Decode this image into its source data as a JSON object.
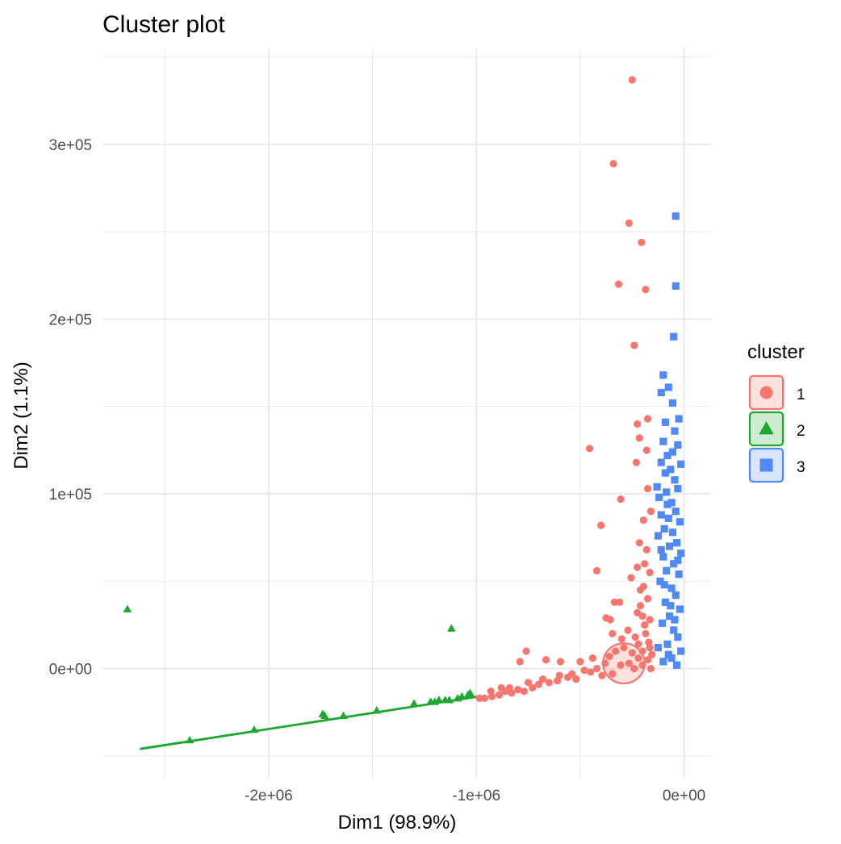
{
  "chart_data": {
    "type": "scatter",
    "title": "Cluster plot",
    "xlabel": "Dim1 (98.9%)",
    "ylabel": "Dim2 (1.1%)",
    "xlim": [
      -2800000,
      130000
    ],
    "ylim": [
      -63000,
      355000
    ],
    "x_ticks": [
      -2000000,
      -1000000,
      0
    ],
    "x_tick_labels": [
      "-2e+06",
      "-1e+06",
      "0e+00"
    ],
    "y_ticks": [
      0,
      100000,
      200000,
      300000
    ],
    "y_tick_labels": [
      "0e+00",
      "1e+05",
      "2e+05",
      "3e+05"
    ],
    "grid": true,
    "legend": {
      "title": "cluster",
      "position": "right",
      "entries": [
        {
          "label": "1",
          "shape": "circle",
          "color": "#F8766D"
        },
        {
          "label": "2",
          "shape": "triangle",
          "color": "#1CA72E"
        },
        {
          "label": "3",
          "shape": "square",
          "color": "#5089F8"
        }
      ]
    },
    "series": [
      {
        "name": "1",
        "color": "#F8766D",
        "shape": "circle",
        "points": [
          [
            -250000,
            337000
          ],
          [
            -340000,
            289000
          ],
          [
            -265000,
            255000
          ],
          [
            -205000,
            244000
          ],
          [
            -315000,
            220000
          ],
          [
            -185000,
            217000
          ],
          [
            -240000,
            185000
          ],
          [
            -455000,
            126000
          ],
          [
            -225000,
            140000
          ],
          [
            -175000,
            143000
          ],
          [
            -215000,
            132000
          ],
          [
            -180000,
            125000
          ],
          [
            -230000,
            118000
          ],
          [
            -305000,
            97000
          ],
          [
            -400000,
            82000
          ],
          [
            -175000,
            103000
          ],
          [
            -160000,
            90000
          ],
          [
            -195000,
            85000
          ],
          [
            -215000,
            72000
          ],
          [
            -180000,
            68000
          ],
          [
            -190000,
            60000
          ],
          [
            -420000,
            56000
          ],
          [
            -225000,
            58000
          ],
          [
            -165000,
            55000
          ],
          [
            -255000,
            52000
          ],
          [
            -195000,
            47000
          ],
          [
            -210000,
            36000
          ],
          [
            -310000,
            38000
          ],
          [
            -335000,
            38000
          ],
          [
            -375000,
            29000
          ],
          [
            -355000,
            28000
          ],
          [
            -225000,
            32000
          ],
          [
            -270000,
            22000
          ],
          [
            -345000,
            20000
          ],
          [
            -300000,
            17000
          ],
          [
            -235000,
            18000
          ],
          [
            -190000,
            25000
          ],
          [
            -170000,
            15000
          ],
          [
            -760000,
            10000
          ],
          [
            -790000,
            4000
          ],
          [
            -665000,
            5000
          ],
          [
            -595000,
            4000
          ],
          [
            -500000,
            4000
          ],
          [
            -440000,
            6000
          ],
          [
            -420000,
            0
          ],
          [
            -380000,
            3000
          ],
          [
            -360000,
            7000
          ],
          [
            -330000,
            10000
          ],
          [
            -290000,
            12000
          ],
          [
            -250000,
            9000
          ],
          [
            -220000,
            6000
          ],
          [
            -200000,
            10000
          ],
          [
            -175000,
            5000
          ],
          [
            -155000,
            8000
          ],
          [
            -265000,
            3000
          ],
          [
            -305000,
            2000
          ],
          [
            -345000,
            -3000
          ],
          [
            -395000,
            -4000
          ],
          [
            -450000,
            -2000
          ],
          [
            -520000,
            -6000
          ],
          [
            -560000,
            -5000
          ],
          [
            -610000,
            -7000
          ],
          [
            -650000,
            -8000
          ],
          [
            -700000,
            -9000
          ],
          [
            -730000,
            -11000
          ],
          [
            -770000,
            -13000
          ],
          [
            -800000,
            -12000
          ],
          [
            -830000,
            -14000
          ],
          [
            -860000,
            -13000
          ],
          [
            -890000,
            -15000
          ],
          [
            -925000,
            -16000
          ],
          [
            -960000,
            -17000
          ],
          [
            -985000,
            -17000
          ],
          [
            -930000,
            -13000
          ],
          [
            -880000,
            -11000
          ],
          [
            -840000,
            -11000
          ],
          [
            -750000,
            -8000
          ],
          [
            -680000,
            -6000
          ],
          [
            -600000,
            -4000
          ],
          [
            -540000,
            -3000
          ],
          [
            -480000,
            -1000
          ],
          [
            -240000,
            0
          ],
          [
            -200000,
            2000
          ],
          [
            -160000,
            0
          ],
          [
            -210000,
            45000
          ],
          [
            -175000,
            40000
          ],
          [
            -200000,
            30000
          ],
          [
            -165000,
            28000
          ],
          [
            -185000,
            20000
          ],
          [
            -220000,
            14000
          ],
          [
            -165000,
            12000
          ]
        ]
      },
      {
        "name": "2",
        "color": "#1CA72E",
        "shape": "triangle",
        "points": [
          [
            -2680000,
            34000
          ],
          [
            -1120000,
            23000
          ],
          [
            -2380000,
            -41000
          ],
          [
            -2070000,
            -35000
          ],
          [
            -1740000,
            -26000
          ],
          [
            -1730000,
            -27000
          ],
          [
            -1640000,
            -27000
          ],
          [
            -1480000,
            -24000
          ],
          [
            -1300000,
            -20000
          ],
          [
            -1220000,
            -19000
          ],
          [
            -1200000,
            -19000
          ],
          [
            -1180000,
            -18000
          ],
          [
            -1150000,
            -18000
          ],
          [
            -1130000,
            -18000
          ],
          [
            -1090000,
            -17000
          ],
          [
            -1070000,
            -16000
          ],
          [
            -1040000,
            -15000
          ],
          [
            -1030000,
            -14000
          ]
        ]
      },
      {
        "name": "3",
        "color": "#5089F8",
        "shape": "square",
        "points": [
          [
            -40000,
            259000
          ],
          [
            -40000,
            219000
          ],
          [
            -50000,
            190000
          ],
          [
            -100000,
            168000
          ],
          [
            -75000,
            161000
          ],
          [
            -110000,
            158000
          ],
          [
            -55000,
            152000
          ],
          [
            -25000,
            143000
          ],
          [
            -90000,
            141000
          ],
          [
            -45000,
            136000
          ],
          [
            -100000,
            130000
          ],
          [
            -30000,
            128000
          ],
          [
            -55000,
            124000
          ],
          [
            -80000,
            122000
          ],
          [
            -110000,
            118000
          ],
          [
            -15000,
            117000
          ],
          [
            -65000,
            114000
          ],
          [
            -90000,
            112000
          ],
          [
            -45000,
            108000
          ],
          [
            -130000,
            104000
          ],
          [
            -30000,
            103000
          ],
          [
            -85000,
            101000
          ],
          [
            -120000,
            98000
          ],
          [
            -60000,
            95000
          ],
          [
            -40000,
            90000
          ],
          [
            -110000,
            88000
          ],
          [
            -75000,
            86000
          ],
          [
            -20000,
            84000
          ],
          [
            -95000,
            80000
          ],
          [
            -55000,
            78000
          ],
          [
            -125000,
            76000
          ],
          [
            -35000,
            72000
          ],
          [
            -70000,
            70000
          ],
          [
            -15000,
            66000
          ],
          [
            -100000,
            64000
          ],
          [
            -50000,
            60000
          ],
          [
            -85000,
            56000
          ],
          [
            -25000,
            54000
          ],
          [
            -115000,
            50000
          ],
          [
            -60000,
            46000
          ],
          [
            -40000,
            42000
          ],
          [
            -90000,
            38000
          ],
          [
            -20000,
            34000
          ],
          [
            -70000,
            30000
          ],
          [
            -105000,
            26000
          ],
          [
            -50000,
            22000
          ],
          [
            -30000,
            18000
          ],
          [
            -80000,
            14000
          ],
          [
            -15000,
            10000
          ],
          [
            -60000,
            6000
          ],
          [
            -100000,
            4000
          ],
          [
            -35000,
            2000
          ],
          [
            -75000,
            8000
          ],
          [
            -125000,
            12000
          ],
          [
            -45000,
            28000
          ],
          [
            -95000,
            48000
          ],
          [
            -65000,
            36000
          ],
          [
            -110000,
            68000
          ],
          [
            -30000,
            62000
          ],
          [
            -80000,
            94000
          ]
        ]
      }
    ],
    "ellipses": [
      {
        "cluster": "1",
        "center": [
          -290000,
          3000
        ],
        "semi_axes": [
          100000,
          11500
        ],
        "color": "#F8766D"
      }
    ],
    "hull_lines": [
      {
        "cluster": "2",
        "from": [
          -2620000,
          -46000
        ],
        "to": [
          -990000,
          -16000
        ],
        "color": "#1CA72E"
      }
    ]
  }
}
